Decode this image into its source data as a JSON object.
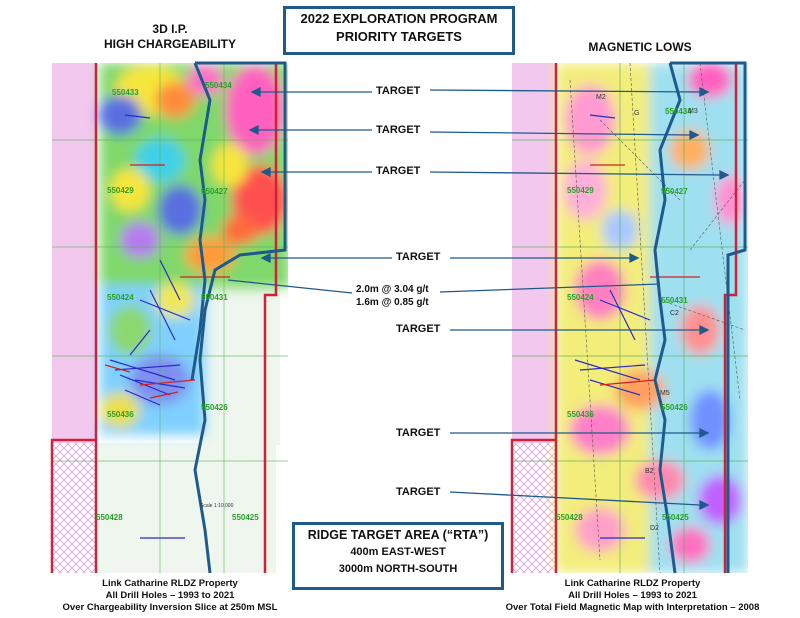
{
  "title": {
    "line1": "2022 EXPLORATION PROGRAM",
    "line2": "PRIORITY TARGETS"
  },
  "left_panel": {
    "heading_line1": "3D I.P.",
    "heading_line2": "HIGH CHARGEABILITY",
    "caption_line1": "Link Catharine RLDZ Property",
    "caption_line2": "All Drill Holes – 1993 to 2021",
    "caption_line3": "Over Chargeability Inversion Slice at 250m MSL",
    "claims": [
      "550433",
      "550434",
      "550429",
      "550427",
      "550424",
      "550431",
      "550436",
      "550426",
      "550428",
      "550425"
    ],
    "scale_label": "Scale 1:10,000"
  },
  "right_panel": {
    "heading": "MAGNETIC LOWS",
    "caption_line1": "Link Catharine RLDZ Property",
    "caption_line2": "All Drill Holes – 1993 to 2021",
    "caption_line3": "Over Total Field Magnetic Map with Interpretation – 2008",
    "claims": [
      "550434",
      "550429",
      "550427",
      "550424",
      "550431",
      "550436",
      "550426",
      "550428",
      "550425"
    ],
    "interp_labels": [
      "M2",
      "M3",
      "G",
      "C2",
      "M5",
      "B2",
      "D2"
    ]
  },
  "targets": [
    "TARGET",
    "TARGET",
    "TARGET",
    "TARGET",
    "TARGET",
    "TARGET",
    "TARGET"
  ],
  "grades": {
    "line1": "2.0m @ 3.04 g/t",
    "line2": "1.6m @ 0.85 g/t"
  },
  "rta": {
    "line1": "RIDGE TARGET AREA (“RTA”)",
    "line2": "400m EAST-WEST",
    "line3": "3000m NORTH-SOUTH"
  },
  "colors": {
    "outline_blue": "#1f5a8c",
    "property_red": "#d0213a",
    "arrow_blue": "#1f5a8c"
  }
}
